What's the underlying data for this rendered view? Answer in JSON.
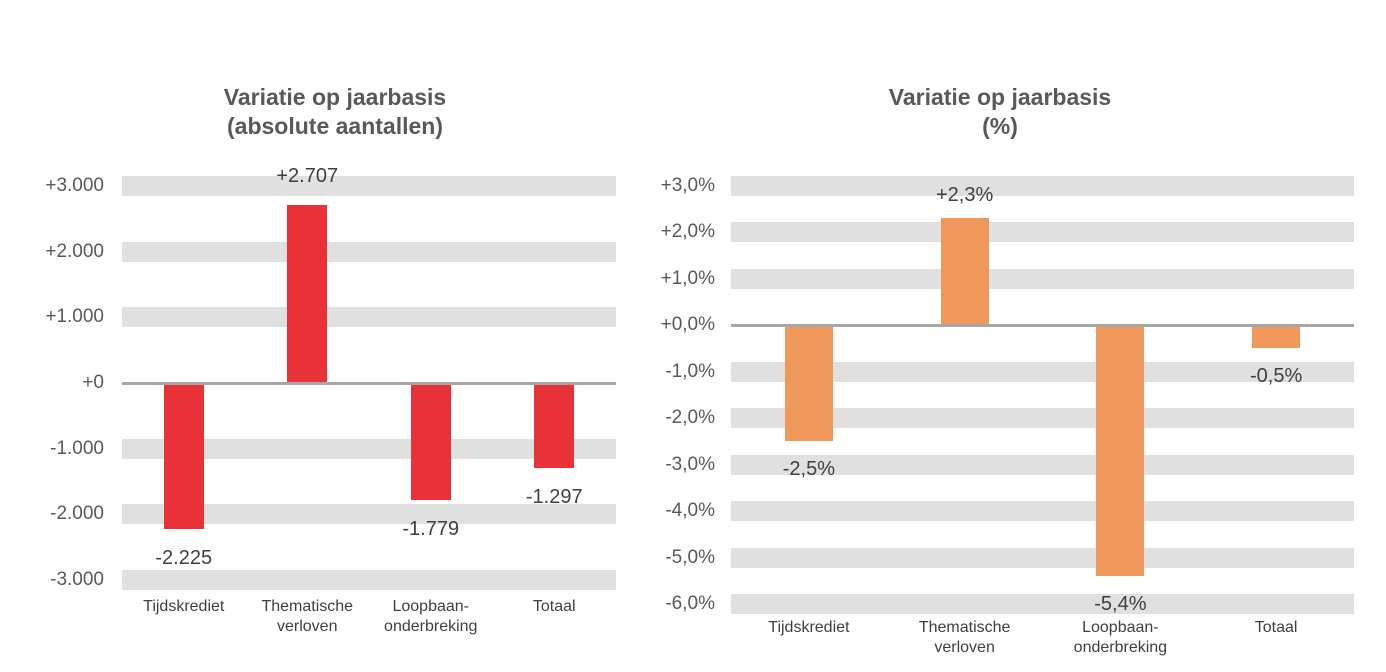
{
  "colors": {
    "background": "#FFFFFF",
    "grid_band": "#E0E0E0",
    "zero_line": "#A6A6A6",
    "title_text": "#595959",
    "tick_text": "#595959",
    "label_text": "#3F3F3F",
    "red_bar": "#E93138",
    "orange_bar": "#F0975C"
  },
  "chart_data": [
    {
      "type": "bar",
      "title": "Variatie op jaarbasis (absolute aantallen)",
      "title_line1": "Variatie op jaarbasis",
      "title_line2": "(absolute aantallen)",
      "categories": [
        [
          "Tijdskrediet"
        ],
        [
          "Thematische",
          "verloven"
        ],
        [
          "Loopbaan-",
          "onderbreking"
        ],
        [
          "Totaal"
        ]
      ],
      "values": [
        -2225,
        2707,
        -1779,
        -1297
      ],
      "value_labels": [
        "-2.225",
        "+2.707",
        "-1.779",
        "-1.297"
      ],
      "ylim": [
        -3000,
        3000
      ],
      "ytick_step": 1000,
      "yticks": [
        3000,
        2000,
        1000,
        0,
        -1000,
        -2000,
        -3000
      ],
      "ytick_labels": [
        "+3.000",
        "+2.000",
        "+1.000",
        "+0",
        "-1.000",
        "-2.000",
        "-3.000"
      ],
      "bar_color": "#E93138",
      "grid": "horizontal-bands",
      "legend": "none",
      "xlabel": "",
      "ylabel": ""
    },
    {
      "type": "bar",
      "title": "Variatie op jaarbasis (%)",
      "title_line1": "Variatie op jaarbasis",
      "title_line2": "(%)",
      "categories": [
        [
          "Tijdskrediet"
        ],
        [
          "Thematische",
          "verloven"
        ],
        [
          "Loopbaan-",
          "onderbreking"
        ],
        [
          "Totaal"
        ]
      ],
      "values": [
        -2.5,
        2.3,
        -5.4,
        -0.5
      ],
      "value_labels": [
        "-2,5%",
        "+2,3%",
        "-5,4%",
        "-0,5%"
      ],
      "ylim": [
        -6,
        3
      ],
      "ytick_step": 1,
      "yticks": [
        3,
        2,
        1,
        0,
        -1,
        -2,
        -3,
        -4,
        -5,
        -6
      ],
      "ytick_labels": [
        "+3,0%",
        "+2,0%",
        "+1,0%",
        "+0,0%",
        "-1,0%",
        "-2,0%",
        "-3,0%",
        "-4,0%",
        "-5,0%",
        "-6,0%"
      ],
      "bar_color": "#F0975C",
      "grid": "horizontal-bands",
      "legend": "none",
      "xlabel": "",
      "ylabel": ""
    }
  ]
}
